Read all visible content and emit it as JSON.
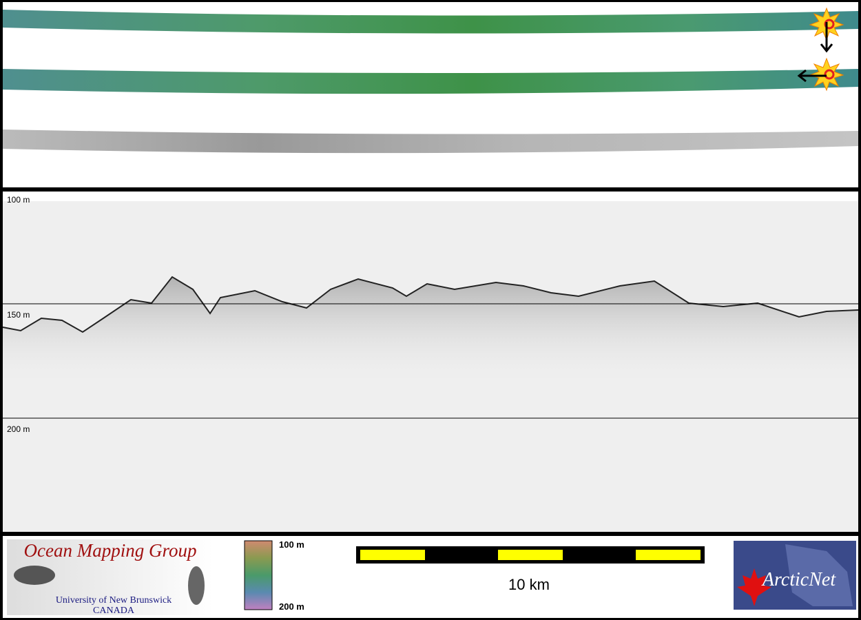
{
  "profile": {
    "depth_labels": [
      "100 m",
      "150 m",
      "200 m"
    ]
  },
  "legend": {
    "top_label": "100 m",
    "bottom_label": "200 m"
  },
  "scale_bar": {
    "label": "10 km"
  },
  "logos": {
    "omg_title": "Ocean Mapping Group",
    "omg_university": "University of New Brunswick",
    "omg_country": "CANADA",
    "arcticnet": "ArcticNet"
  }
}
